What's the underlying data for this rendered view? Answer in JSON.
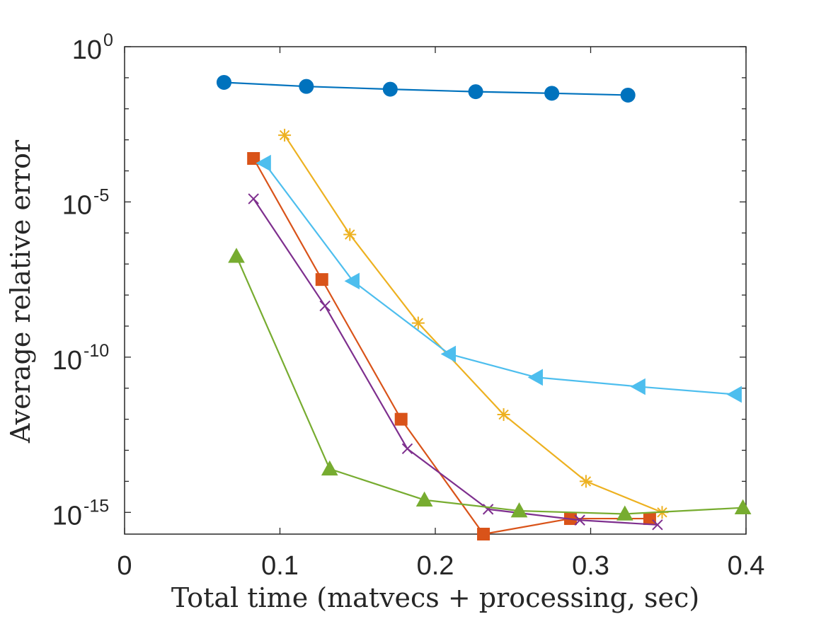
{
  "chart_data": {
    "type": "line",
    "title": "",
    "xlabel": "Total time (matvecs + processing, sec)",
    "ylabel": "Average relative error",
    "xlim": [
      0,
      0.4
    ],
    "ylim_log10": [
      -15.7,
      0
    ],
    "yscale": "log",
    "grid": false,
    "x_ticks": [
      {
        "value": 0,
        "label": "0"
      },
      {
        "value": 0.1,
        "label": "0.1"
      },
      {
        "value": 0.2,
        "label": "0.2"
      },
      {
        "value": 0.3,
        "label": "0.3"
      },
      {
        "value": 0.4,
        "label": "0.4"
      }
    ],
    "y_ticks": [
      {
        "value": 0,
        "base": "10",
        "exp": "0"
      },
      {
        "value": -5,
        "base": "10",
        "exp": "-5"
      },
      {
        "value": -10,
        "base": "10",
        "exp": "-10"
      },
      {
        "value": -15,
        "base": "10",
        "exp": "-15"
      }
    ],
    "series": [
      {
        "name": "series-blue",
        "color": "#0072BD",
        "marker": "circle",
        "points": [
          [
            0.064,
            -1.15
          ],
          [
            0.117,
            -1.28
          ],
          [
            0.171,
            -1.37
          ],
          [
            0.226,
            -1.45
          ],
          [
            0.275,
            -1.5
          ],
          [
            0.324,
            -1.56
          ]
        ]
      },
      {
        "name": "series-orange",
        "color": "#D95319",
        "marker": "square",
        "points": [
          [
            0.083,
            -3.6
          ],
          [
            0.127,
            -7.5
          ],
          [
            0.178,
            -12.0
          ],
          [
            0.231,
            -15.7
          ],
          [
            0.287,
            -15.2
          ],
          [
            0.338,
            -15.2
          ]
        ]
      },
      {
        "name": "series-yellow",
        "color": "#EDB120",
        "marker": "asterisk",
        "points": [
          [
            0.103,
            -2.85
          ],
          [
            0.145,
            -6.05
          ],
          [
            0.189,
            -8.9
          ],
          [
            0.244,
            -11.85
          ],
          [
            0.297,
            -14.0
          ],
          [
            0.346,
            -15.0
          ]
        ]
      },
      {
        "name": "series-purple",
        "color": "#7E2F8E",
        "marker": "x",
        "points": [
          [
            0.083,
            -4.9
          ],
          [
            0.129,
            -8.35
          ],
          [
            0.182,
            -12.95
          ],
          [
            0.234,
            -14.9
          ],
          [
            0.293,
            -15.25
          ],
          [
            0.343,
            -15.4
          ]
        ]
      },
      {
        "name": "series-green",
        "color": "#77AC30",
        "marker": "triangle-up",
        "points": [
          [
            0.072,
            -6.75
          ],
          [
            0.132,
            -13.6
          ],
          [
            0.193,
            -14.6
          ],
          [
            0.254,
            -14.95
          ],
          [
            0.322,
            -15.05
          ],
          [
            0.398,
            -14.85
          ]
        ]
      },
      {
        "name": "series-cyan",
        "color": "#4DBEEE",
        "marker": "triangle-left",
        "points": [
          [
            0.09,
            -3.75
          ],
          [
            0.147,
            -7.55
          ],
          [
            0.209,
            -9.9
          ],
          [
            0.265,
            -10.65
          ],
          [
            0.331,
            -10.95
          ],
          [
            0.393,
            -11.2
          ]
        ]
      }
    ]
  }
}
